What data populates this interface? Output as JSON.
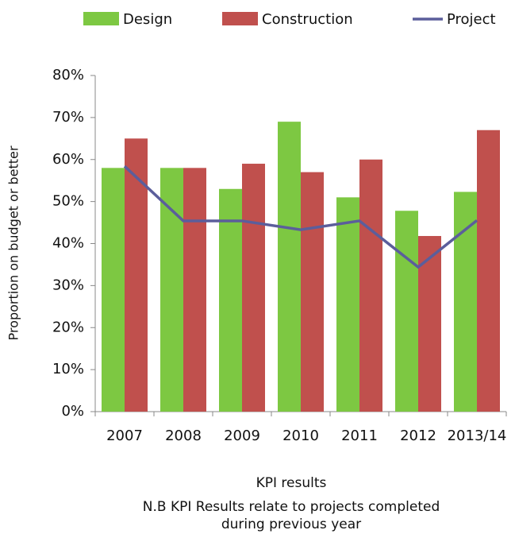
{
  "chart_data": {
    "type": "bar",
    "x_label": "KPI results",
    "y_label": "Proportion on budget or better",
    "note": [
      "N.B KPI Results relate to projects completed",
      "during previous year"
    ],
    "categories": [
      "2007",
      "2008",
      "2009",
      "2010",
      "2011",
      "2012",
      "2013/14"
    ],
    "series": [
      {
        "name": "Design",
        "type": "bar",
        "color": "#7dc842",
        "values": [
          58,
          58,
          53,
          69,
          51,
          47.8,
          52.3
        ]
      },
      {
        "name": "Construction",
        "type": "bar",
        "color": "#c0504d",
        "values": [
          65,
          58,
          59,
          57,
          60,
          41.8,
          67
        ]
      },
      {
        "name": "Project",
        "type": "line",
        "color": "#5b5e9b",
        "values": [
          58.4,
          45.4,
          45.4,
          43.3,
          45.4,
          34.4,
          45.5
        ]
      }
    ],
    "ylim": [
      0,
      80
    ],
    "yticks": [
      {
        "value": 0,
        "label": "0%"
      },
      {
        "value": 10,
        "label": "10%"
      },
      {
        "value": 20,
        "label": "20%"
      },
      {
        "value": 30,
        "label": "30%"
      },
      {
        "value": 40,
        "label": "40%"
      },
      {
        "value": 50,
        "label": "50%"
      },
      {
        "value": 60,
        "label": "60%"
      },
      {
        "value": 70,
        "label": "70%"
      },
      {
        "value": 80,
        "label": "80%"
      }
    ],
    "grid": false,
    "legend": "top"
  }
}
